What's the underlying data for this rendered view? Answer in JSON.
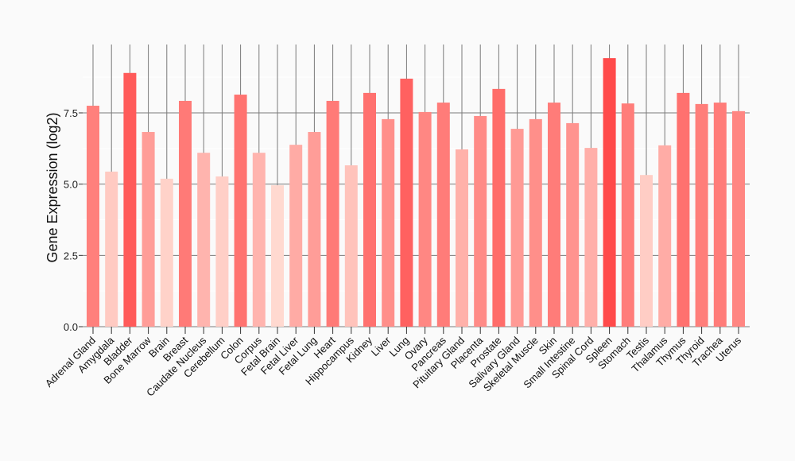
{
  "chart_data": {
    "type": "bar",
    "title": "",
    "xlabel": "",
    "ylabel": "Gene Expression (log2)",
    "ylim": [
      0,
      9.6
    ],
    "yticks": [
      "0.0",
      "2.5",
      "5.0",
      "7.5"
    ],
    "ytick_values": [
      0,
      2.5,
      5.0,
      7.5
    ],
    "grid": true,
    "legend": "none",
    "categories": [
      "Adrenal Gland",
      "Amygdala",
      "Bladder",
      "Bone Marrow",
      "Brain",
      "Breast",
      "Caudate Nucleus",
      "Cerebellum",
      "Colon",
      "Corpus",
      "Fetal Brain",
      "Fetal Liver",
      "Fetal Lung",
      "Heart",
      "Hippocampus",
      "Kidney",
      "Liver",
      "Lung",
      "Ovary",
      "Pancreas",
      "Pituitary Gland",
      "Placenta",
      "Prostate",
      "Salivary Gland",
      "Skeletal Muscle",
      "Skin",
      "Small Intestine",
      "Spinal Cord",
      "Spleen",
      "Stomach",
      "Testis",
      "Thalamus",
      "Thymus",
      "Thyroid",
      "Trachea",
      "Uterus"
    ],
    "values": [
      7.75,
      5.44,
      8.9,
      6.83,
      5.19,
      7.92,
      6.1,
      5.27,
      8.14,
      6.1,
      4.96,
      6.38,
      6.83,
      7.92,
      5.66,
      8.2,
      7.28,
      8.7,
      7.53,
      7.86,
      6.22,
      7.39,
      8.34,
      6.94,
      7.28,
      7.86,
      7.14,
      6.27,
      9.42,
      7.83,
      5.32,
      6.36,
      8.2,
      7.81,
      7.86,
      7.56
    ],
    "color_low": "#ffd9d0",
    "color_high": "#ff4a4a"
  }
}
